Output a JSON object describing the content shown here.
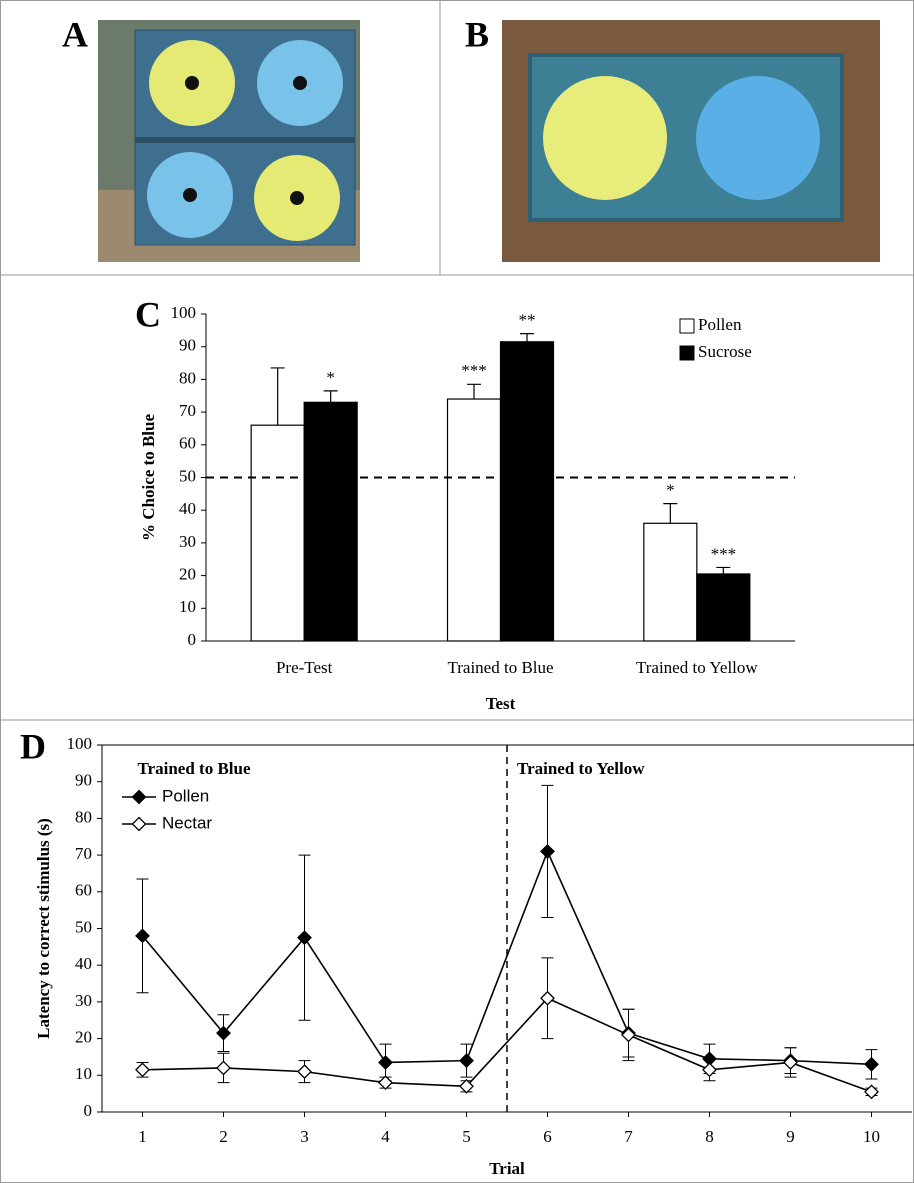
{
  "panels": [
    {
      "label": "A"
    },
    {
      "label": "B"
    }
  ],
  "chart_data": [
    {
      "type": "bar",
      "panel_label": "C",
      "y_label": "% Choice to Blue",
      "x_label": "Test",
      "categories": [
        "Pre-Test",
        "Trained to Blue",
        "Trained to Yellow"
      ],
      "series": [
        {
          "name": "Pollen",
          "color": "#ffffff",
          "values": [
            66,
            74,
            36
          ],
          "errors": [
            17.5,
            4.5,
            6
          ],
          "annotations": [
            null,
            "***",
            "*"
          ]
        },
        {
          "name": "Sucrose",
          "color": "#000000",
          "values": [
            73,
            91.5,
            20.5
          ],
          "errors": [
            3.5,
            2.5,
            2
          ],
          "annotations": [
            "*",
            "**",
            "***"
          ]
        }
      ],
      "reference_line": 50,
      "ylim": [
        0,
        100
      ],
      "yticks": [
        0,
        10,
        20,
        30,
        40,
        50,
        60,
        70,
        80,
        90,
        100
      ],
      "legend": "upper-right"
    },
    {
      "type": "line",
      "panel_label": "D",
      "y_label": "Latency to correct stimulus (s)",
      "x_label": "Trial",
      "x": [
        1,
        2,
        3,
        4,
        5,
        6,
        7,
        8,
        9,
        10
      ],
      "series": [
        {
          "name": "Pollen",
          "color": "#000000",
          "marker_fill": "#000000",
          "values": [
            48,
            21.5,
            47.5,
            13.5,
            14,
            71,
            21.5,
            14.5,
            14,
            13
          ],
          "errors": [
            15.5,
            5,
            22.5,
            5,
            4.5,
            18,
            6.5,
            4,
            3.5,
            4
          ]
        },
        {
          "name": "Nectar",
          "color": "#000000",
          "marker_fill": "#ffffff",
          "values": [
            11.5,
            12,
            11,
            8,
            7,
            31,
            21,
            11.5,
            13.5,
            5.5
          ],
          "errors": [
            2,
            4,
            3,
            1.5,
            1.5,
            11,
            7,
            3,
            4,
            1
          ]
        }
      ],
      "divider_x": 5.5,
      "annotations": [
        {
          "text": "Trained to Blue",
          "x": 1
        },
        {
          "text": "Trained to Yellow",
          "x": 5.5
        }
      ],
      "xlim": [
        0.5,
        10.5
      ],
      "xticks": [
        1,
        2,
        3,
        4,
        5,
        6,
        7,
        8,
        9,
        10
      ],
      "ylim": [
        0,
        100
      ],
      "yticks": [
        0,
        10,
        20,
        30,
        40,
        50,
        60,
        70,
        80,
        90,
        100
      ],
      "legend": "upper-left"
    }
  ]
}
